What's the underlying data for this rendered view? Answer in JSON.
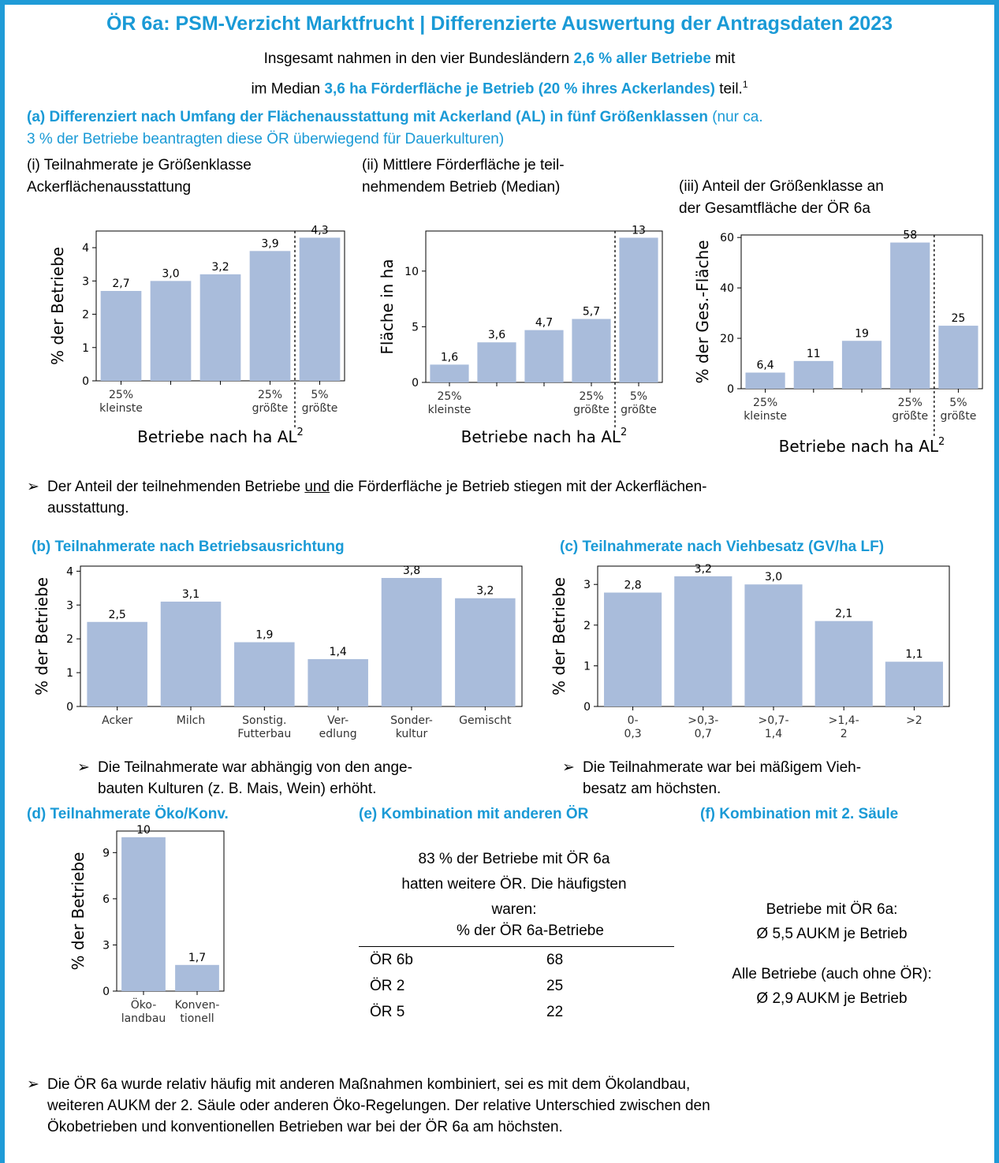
{
  "title": "ÖR 6a: PSM-Verzicht Marktfrucht | Differenzierte Auswertung der Antragsdaten 2023",
  "intro": {
    "l1_a": "Insgesamt nahmen in den vier Bundesländern ",
    "l1_b": "2,6 % aller Betriebe",
    "l1_c": " mit",
    "l2_a": "im Median ",
    "l2_b": "3,6 ha Förderfläche je Betrieb (20 % ihres Ackerlandes)",
    "l2_c": " teil.",
    "l2_sup": "1"
  },
  "section_a": {
    "heading_bold": "(a) Differenziert nach Umfang der Flächenausstattung mit Ackerland (AL) in fünf Größenklassen",
    "heading_rest_1": " (nur ca.",
    "heading_rest_2": "3 % der Betriebe beantragten diese ÖR überwiegend für Dauerkulturen)",
    "sub_i_1": "(i) Teilnahmerate je Größenklasse",
    "sub_i_2": "Ackerflächenausstattung",
    "sub_ii_1": "(ii) Mittlere Förderfläche je teil-",
    "sub_ii_2": "nehmendem Betrieb (Median)",
    "sub_iii_1": "(iii) Anteil der Größenklasse an",
    "sub_iii_2": "der Gesamtfläche der ÖR 6a",
    "bullet": "Der Anteil der teilnehmenden Betriebe und die Förderfläche je Betrieb stiegen mit der Ackerflächen-",
    "bullet_u": "und",
    "bullet_pre": "Der Anteil der teilnehmenden Betriebe ",
    "bullet_post": " die Förderfläche je Betrieb stiegen mit der Ackerflächen-",
    "bullet_2": "ausstattung."
  },
  "section_b": {
    "heading": "(b) Teilnahmerate nach Betriebsausrichtung",
    "bullet_1": "Die Teilnahmerate war abhängig von den ange-",
    "bullet_2": "bauten Kulturen (z. B. Mais, Wein) erhöht."
  },
  "section_c": {
    "heading": "(c) Teilnahmerate nach Viehbesatz (GV/ha LF)",
    "bullet_1": "Die Teilnahmerate war bei mäßigem Vieh-",
    "bullet_2": "besatz am höchsten."
  },
  "section_d": {
    "heading": "(d) Teilnahmerate Öko/Konv."
  },
  "section_e": {
    "heading": "(e) Kombination mit anderen ÖR",
    "text_1": "83 % der Betriebe mit ÖR 6a",
    "text_2": "hatten weitere ÖR. Die häufigsten",
    "text_3": "waren:",
    "table_header": "% der ÖR 6a-Betriebe",
    "rows": [
      {
        "name": "ÖR 6b",
        "value": "68"
      },
      {
        "name": "ÖR 2",
        "value": "25"
      },
      {
        "name": "ÖR 5",
        "value": "22"
      }
    ]
  },
  "section_f": {
    "heading": "(f) Kombination mit 2. Säule",
    "text_1": "Betriebe mit ÖR 6a:",
    "text_2": "Ø 5,5 AUKM je Betrieb",
    "text_3": "Alle Betriebe (auch ohne ÖR):",
    "text_4": "Ø 2,9 AUKM je Betrieb"
  },
  "final_bullet": {
    "l1": "Die ÖR 6a wurde relativ häufig mit anderen Maßnahmen kombiniert, sei es mit dem Ökolandbau,",
    "l2": "weiteren AUKM der 2. Säule oder anderen Öko-Regelungen. Der relative Unterschied zwischen den",
    "l3": "Ökobetrieben und konventionellen Betrieben war bei der ÖR 6a am höchsten."
  },
  "colors": {
    "accent": "#1a9ad6",
    "bar": "#a9bcdb"
  },
  "chart_data": [
    {
      "id": "a_i",
      "type": "bar",
      "divider_after": 3,
      "values": [
        2.7,
        3.0,
        3.2,
        3.9,
        4.3
      ],
      "labels": [
        "2,7",
        "3,0",
        "3,2",
        "3,9",
        "4,3"
      ],
      "ylim": [
        0,
        4.5
      ],
      "yticks": [
        0,
        1,
        2,
        3,
        4
      ],
      "ytick_labels": [
        "0",
        "1",
        "2",
        "3",
        "4"
      ],
      "xtick_labels": [
        [
          "25%",
          "kleinste"
        ],
        null,
        null,
        [
          "25%",
          "größte"
        ],
        [
          "5%",
          "größte"
        ]
      ],
      "ylabel": "% der Betriebe",
      "xlabel": "Betriebe nach ha AL",
      "xlabel_sup": "2"
    },
    {
      "id": "a_ii",
      "type": "bar",
      "divider_after": 3,
      "values": [
        1.6,
        3.6,
        4.7,
        5.7,
        13
      ],
      "labels": [
        "1,6",
        "3,6",
        "4,7",
        "5,7",
        "13"
      ],
      "ylim": [
        0,
        13.6
      ],
      "yticks": [
        0,
        5,
        10
      ],
      "ytick_labels": [
        "0",
        "5",
        "10"
      ],
      "xtick_labels": [
        [
          "25%",
          "kleinste"
        ],
        null,
        null,
        [
          "25%",
          "größte"
        ],
        [
          "5%",
          "größte"
        ]
      ],
      "ylabel": "Fläche in ha",
      "xlabel": "Betriebe nach ha AL",
      "xlabel_sup": "2"
    },
    {
      "id": "a_iii",
      "type": "bar",
      "divider_after": 3,
      "values": [
        6.4,
        11,
        19,
        58,
        25
      ],
      "labels": [
        "6,4",
        "11",
        "19",
        "58",
        "25"
      ],
      "ylim": [
        0,
        61
      ],
      "yticks": [
        0,
        20,
        40,
        60
      ],
      "ytick_labels": [
        "0",
        "20",
        "40",
        "60"
      ],
      "xtick_labels": [
        [
          "25%",
          "kleinste"
        ],
        null,
        null,
        [
          "25%",
          "größte"
        ],
        [
          "5%",
          "größte"
        ]
      ],
      "ylabel": "% der Ges.-Fläche",
      "xlabel": "Betriebe nach ha AL",
      "xlabel_sup": "2"
    },
    {
      "id": "b",
      "type": "bar",
      "values": [
        2.5,
        3.1,
        1.9,
        1.4,
        3.8,
        3.2
      ],
      "labels": [
        "2,5",
        "3,1",
        "1,9",
        "1,4",
        "3,8",
        "3,2"
      ],
      "ylim": [
        0,
        4.15
      ],
      "yticks": [
        0,
        1,
        2,
        3,
        4
      ],
      "ytick_labels": [
        "0",
        "1",
        "2",
        "3",
        "4"
      ],
      "xtick_labels": [
        [
          "Acker"
        ],
        [
          "Milch"
        ],
        [
          "Sonstig.",
          "Futterbau"
        ],
        [
          "Ver-",
          "edlung"
        ],
        [
          "Sonder-",
          "kultur"
        ],
        [
          "Gemischt"
        ]
      ],
      "ylabel": "% der Betriebe"
    },
    {
      "id": "c",
      "type": "bar",
      "values": [
        2.8,
        3.2,
        3.0,
        2.1,
        1.1
      ],
      "labels": [
        "2,8",
        "3,2",
        "3,0",
        "2,1",
        "1,1"
      ],
      "ylim": [
        0,
        3.45
      ],
      "yticks": [
        0,
        1,
        2,
        3
      ],
      "ytick_labels": [
        "0",
        "1",
        "2",
        "3"
      ],
      "xtick_labels": [
        [
          "0-",
          "0,3"
        ],
        [
          ">0,3-",
          "0,7"
        ],
        [
          ">0,7-",
          "1,4"
        ],
        [
          ">1,4-",
          "2"
        ],
        [
          ">2"
        ]
      ],
      "ylabel": "% der Betriebe"
    },
    {
      "id": "d",
      "type": "bar",
      "values": [
        10,
        1.7
      ],
      "labels": [
        "10",
        "1,7"
      ],
      "ylim": [
        0,
        10.4
      ],
      "yticks": [
        0,
        3,
        6,
        9
      ],
      "ytick_labels": [
        "0",
        "3",
        "6",
        "9"
      ],
      "xtick_labels": [
        [
          "Öko-",
          "landbau"
        ],
        [
          "Konven-",
          "tionell"
        ]
      ],
      "ylabel": "% der Betriebe"
    }
  ]
}
